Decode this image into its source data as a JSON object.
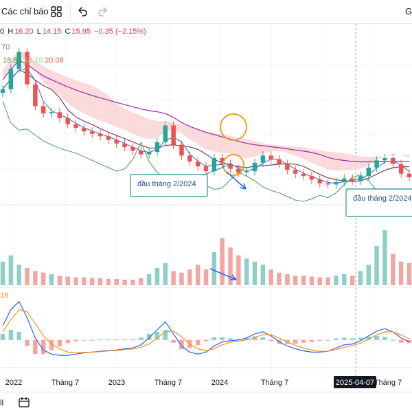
{
  "toolbar": {
    "indicators_label": "Các chỉ báo",
    "icons": [
      "indicators-templates-icon",
      "undo-icon",
      "redo-icon"
    ],
    "right_edge_text": "G"
  },
  "legend": {
    "ohlc_o": "0",
    "h_label": "H",
    "h_value": "16.20",
    "l_label": "L",
    "l_value": "14.15",
    "c_label": "C",
    "c_value": "15.95",
    "change": "−0.35 (−2.15%)",
    "row2_value": "70",
    "row3_a": "18.60",
    "row3_b": "18.10",
    "row3_c": "20.08",
    "macd_label": "18"
  },
  "annotations": {
    "box1_text": "đầu tháng 2/2024",
    "box2_text": "đầu tháng 2/2024",
    "date_badge": "2025-04-07"
  },
  "colors": {
    "up": "#26a69a",
    "down": "#ef5350",
    "volume_up": "#8fcfc5",
    "volume_down": "#f2a6a4",
    "kijun": "#7a3045",
    "tenkan": "#2962ff",
    "chikou": "#43a047",
    "ma_long": "#9c27b0",
    "cloud_bull": "#cfe8d3",
    "cloud_bear": "#f9d1d1",
    "macd_line": "#2962ff",
    "signal_line": "#f7931a",
    "circle": "#f0a020",
    "annotation_border": "#2a8c98",
    "arrow": "#2962ff",
    "date_badge_bg": "#131722"
  },
  "chart_data": {
    "type": "line",
    "price_series_name": "C",
    "x_tick_labels": [
      "2022",
      "Tháng 7",
      "2023",
      "Tháng 7",
      "2024",
      "Tháng 7",
      "2025-04-07",
      "Tháng 7"
    ],
    "close": [
      17.8,
      19.5,
      20.9,
      18.2,
      16.4,
      15.8,
      15.9,
      15.4,
      14.9,
      14.6,
      14.3,
      14.1,
      13.9,
      13.6,
      13.3,
      13.0,
      12.7,
      12.4,
      12.6,
      13.4,
      14.8,
      13.2,
      12.3,
      11.8,
      11.4,
      11.0,
      12.1,
      11.6,
      11.2,
      10.9,
      11.0,
      11.7,
      12.3,
      12.0,
      11.6,
      11.1,
      10.8,
      10.6,
      10.3,
      10.0,
      9.9,
      10.1,
      10.4,
      10.2,
      10.6,
      11.3,
      11.9,
      12.1,
      11.6,
      10.8,
      10.5
    ],
    "volume": [
      30,
      38,
      26,
      22,
      18,
      16,
      14,
      12,
      11,
      10,
      10,
      9,
      9,
      8,
      8,
      7,
      7,
      9,
      14,
      22,
      28,
      18,
      16,
      20,
      26,
      20,
      42,
      60,
      48,
      38,
      34,
      30,
      26,
      20,
      16,
      14,
      12,
      12,
      11,
      10,
      10,
      12,
      14,
      12,
      18,
      26,
      50,
      70,
      40,
      30,
      28
    ],
    "macd": [
      0.35,
      0.75,
      0.95,
      0.55,
      0.05,
      -0.25,
      -0.35,
      -0.38,
      -0.38,
      -0.35,
      -0.32,
      -0.3,
      -0.28,
      -0.26,
      -0.25,
      -0.22,
      -0.2,
      -0.12,
      0.05,
      0.25,
      0.45,
      0.15,
      -0.15,
      -0.3,
      -0.35,
      -0.3,
      -0.15,
      -0.05,
      -0.02,
      0.0,
      0.05,
      0.15,
      0.2,
      0.1,
      -0.05,
      -0.15,
      -0.22,
      -0.27,
      -0.3,
      -0.3,
      -0.28,
      -0.2,
      -0.12,
      -0.1,
      -0.02,
      0.1,
      0.22,
      0.28,
      0.2,
      0.05,
      -0.05
    ],
    "signal": [
      0.2,
      0.5,
      0.75,
      0.7,
      0.4,
      0.1,
      -0.1,
      -0.22,
      -0.3,
      -0.32,
      -0.31,
      -0.3,
      -0.29,
      -0.27,
      -0.26,
      -0.24,
      -0.22,
      -0.18,
      -0.1,
      0.05,
      0.2,
      0.22,
      0.08,
      -0.1,
      -0.22,
      -0.27,
      -0.22,
      -0.12,
      -0.06,
      -0.03,
      0.0,
      0.06,
      0.13,
      0.13,
      0.05,
      -0.05,
      -0.13,
      -0.2,
      -0.25,
      -0.28,
      -0.28,
      -0.24,
      -0.18,
      -0.14,
      -0.08,
      0.02,
      0.12,
      0.2,
      0.2,
      0.12,
      0.03
    ],
    "ylim_price": [
      8.5,
      21.5
    ],
    "ylim_macd": [
      -0.6,
      1.1
    ]
  }
}
